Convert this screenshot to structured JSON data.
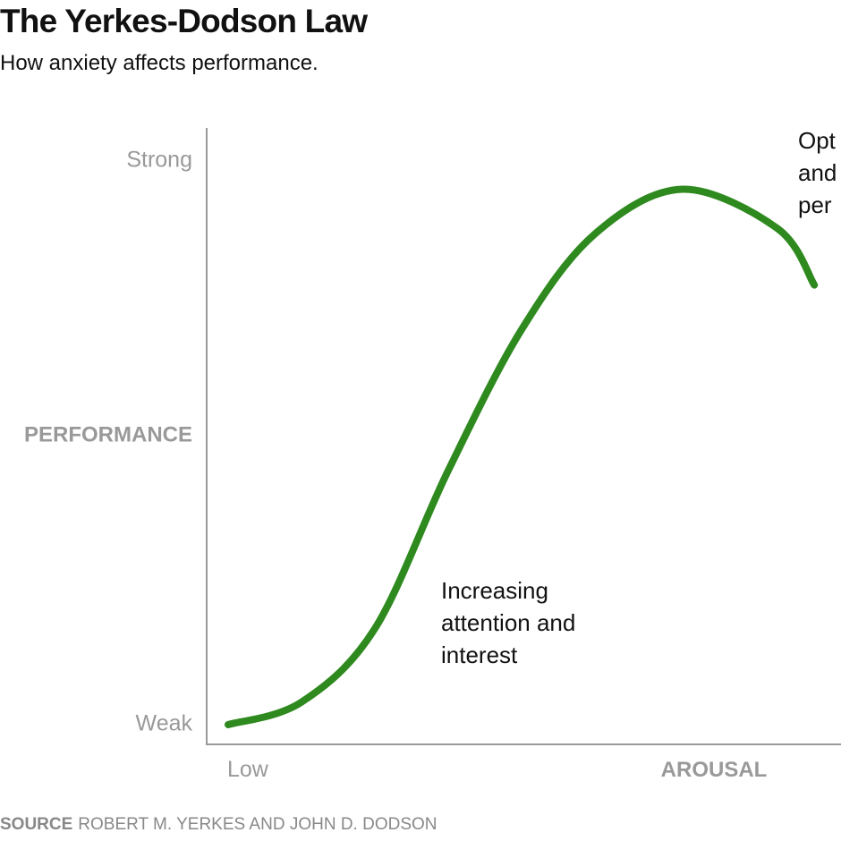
{
  "header": {
    "title": "The Yerkes-Dodson Law",
    "subtitle": "How anxiety affects performance."
  },
  "footer": {
    "source_label": "SOURCE",
    "source_text": "ROBERT M. YERKES AND JOHN D. DODSON"
  },
  "colors": {
    "curve": "#2e8a1e",
    "axis": "#999999",
    "tick_text": "#999999",
    "text": "#111111"
  },
  "chart_data": {
    "type": "line",
    "title": "The Yerkes-Dodson Law",
    "subtitle": "How anxiety affects performance.",
    "xlabel": "AROUSAL",
    "ylabel": "PERFORMANCE",
    "x_ticks": [
      "Low"
    ],
    "y_ticks": [
      "Strong",
      "Weak"
    ],
    "xlim": [
      0,
      1
    ],
    "ylim": [
      0,
      1
    ],
    "grid": false,
    "legend": "none",
    "series": [
      {
        "color": "#2e8a1e",
        "points": [
          {
            "x": 0.0,
            "y": 0.0
          },
          {
            "x": 0.1,
            "y": 0.04
          },
          {
            "x": 0.2,
            "y": 0.17
          },
          {
            "x": 0.3,
            "y": 0.45
          },
          {
            "x": 0.4,
            "y": 0.7
          },
          {
            "x": 0.5,
            "y": 0.87
          },
          {
            "x": 0.62,
            "y": 0.95
          },
          {
            "x": 0.75,
            "y": 0.88
          },
          {
            "x": 0.8,
            "y": 0.78
          }
        ]
      }
    ],
    "annotations": [
      {
        "lines": [
          "Increasing",
          "attention and",
          "interest"
        ],
        "x": 0.28,
        "y": 0.2
      },
      {
        "lines": [
          "Opt",
          "and",
          "per"
        ],
        "x": 0.74,
        "y": 1.0
      }
    ]
  }
}
